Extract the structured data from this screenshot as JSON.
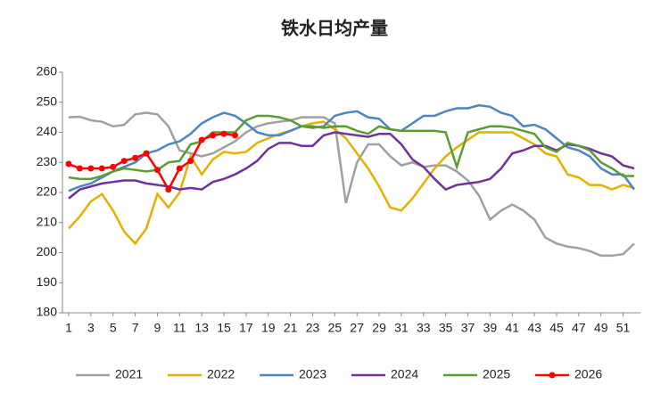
{
  "chart_data": {
    "type": "line",
    "title": "铁水日均产量",
    "x": [
      1,
      2,
      3,
      4,
      5,
      6,
      7,
      8,
      9,
      10,
      11,
      12,
      13,
      14,
      15,
      16,
      17,
      18,
      19,
      20,
      21,
      22,
      23,
      24,
      25,
      26,
      27,
      28,
      29,
      30,
      31,
      32,
      33,
      34,
      35,
      36,
      37,
      38,
      39,
      40,
      41,
      42,
      43,
      44,
      45,
      46,
      47,
      48,
      49,
      50,
      51,
      52
    ],
    "xlim": [
      1,
      52
    ],
    "xticks": [
      1,
      3,
      5,
      7,
      9,
      11,
      13,
      15,
      17,
      19,
      21,
      23,
      25,
      27,
      29,
      31,
      33,
      35,
      37,
      39,
      41,
      43,
      45,
      47,
      49,
      51
    ],
    "ylim": [
      180,
      260
    ],
    "yticks": [
      180,
      190,
      200,
      210,
      220,
      230,
      240,
      250,
      260
    ],
    "legend": "bottom",
    "series": [
      {
        "name": "2021",
        "color": "#a0a0a0",
        "values": [
          245,
          245.2,
          244,
          243.5,
          242,
          242.5,
          246,
          246.5,
          246,
          242,
          234,
          233,
          232,
          233,
          235,
          237,
          240,
          242,
          243,
          243.5,
          244,
          245,
          245,
          245,
          243,
          216.5,
          230,
          236,
          236,
          232,
          229,
          230,
          228.5,
          229,
          229,
          227,
          224,
          219,
          211,
          214,
          216,
          214,
          211,
          205,
          203,
          202,
          201.5,
          200.5,
          199,
          199,
          199.5,
          203
        ]
      },
      {
        "name": "2022",
        "color": "#e6b000",
        "values": [
          208,
          212,
          217,
          219.5,
          214,
          207,
          203,
          208,
          219.5,
          215,
          220,
          232,
          226,
          231,
          233.5,
          233,
          233.5,
          236.5,
          238,
          239.5,
          240.5,
          242,
          243,
          243.5,
          241,
          238,
          233,
          228,
          222,
          215,
          214,
          218,
          223,
          228,
          232,
          235,
          237.5,
          240,
          240,
          240,
          240,
          238,
          236,
          233,
          232,
          226,
          225,
          222.5,
          222.5,
          221,
          222.5,
          221.5
        ]
      },
      {
        "name": "2023",
        "color": "#4a86bf",
        "values": [
          220.5,
          222,
          223,
          225,
          227,
          228.5,
          230,
          233,
          234,
          236,
          237,
          239.5,
          243,
          245,
          246.5,
          245.5,
          243,
          240,
          239,
          239,
          240.5,
          242,
          241.5,
          242,
          245.5,
          246.5,
          247,
          245,
          244.5,
          241,
          240.5,
          243,
          245.5,
          245.5,
          247,
          248,
          248,
          249,
          248.5,
          246.5,
          245.5,
          242,
          242.5,
          241,
          238,
          235,
          234,
          232,
          228,
          226,
          226,
          221
        ]
      },
      {
        "name": "2024",
        "color": "#7030a0",
        "values": [
          218,
          221,
          222,
          223,
          223.5,
          224,
          224,
          223,
          222.5,
          222,
          221,
          221.5,
          221,
          223.5,
          224.5,
          226,
          228,
          230.5,
          234.5,
          236.5,
          236.5,
          235.5,
          235.5,
          239,
          240,
          239.5,
          239,
          238.5,
          239.5,
          239.5,
          236,
          231,
          228.5,
          224.5,
          221,
          222.5,
          223,
          223.5,
          224.5,
          228,
          233,
          234,
          235.5,
          235.5,
          234,
          236,
          235.5,
          234.5,
          233,
          232,
          229,
          228
        ]
      },
      {
        "name": "2025",
        "color": "#5a9e32",
        "values": [
          225,
          224.5,
          224.5,
          225.5,
          227,
          228,
          227.5,
          227,
          227.5,
          230,
          230.5,
          236,
          237,
          240,
          240,
          240,
          244,
          245.5,
          245.5,
          245,
          244,
          242,
          242,
          241.5,
          242,
          242,
          240.5,
          239.5,
          242,
          241,
          240.5,
          240.5,
          240.5,
          240.5,
          240,
          228.5,
          240,
          241,
          242,
          242,
          241.5,
          240.5,
          239.5,
          235,
          233.5,
          236.5,
          235.5,
          234,
          230,
          228,
          225.5,
          225.5
        ]
      },
      {
        "name": "2026",
        "color": "#ff0000",
        "marker": true,
        "values": [
          229.5,
          228,
          228,
          228,
          228.5,
          230.5,
          231.5,
          233,
          227.5,
          221,
          228,
          230.5,
          237.5,
          239,
          239.5,
          239,
          null,
          null,
          null,
          null,
          null,
          null,
          null,
          null,
          null,
          null,
          null,
          null,
          null,
          null,
          null,
          null,
          null,
          null,
          null,
          null,
          null,
          null,
          null,
          null,
          null,
          null,
          null,
          null,
          null,
          null,
          null,
          null,
          null,
          null,
          null,
          null
        ]
      }
    ]
  }
}
